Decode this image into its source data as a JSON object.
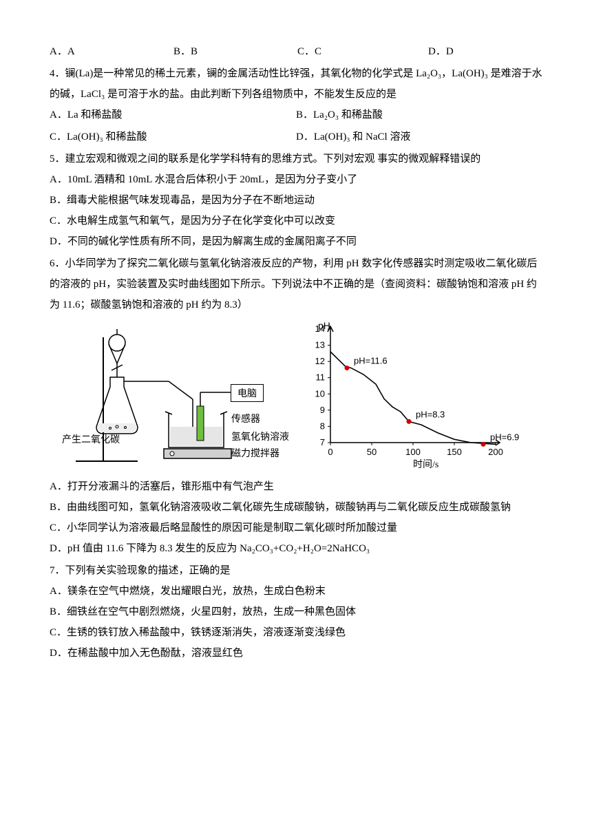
{
  "opts_top": {
    "A": "A．A",
    "B": "B．B",
    "C": "C．C",
    "D": "D．D"
  },
  "q4": {
    "stem": "4．镧(La)是一种常见的稀土元素，镧的金属活动性比锌强，其氧化物的化学式是 La₂O₃，La(OH)₃ 是难溶于水的碱，LaCl₃ 是可溶于水的盐。由此判断下列各组物质中，不能发生反应的是",
    "A": "A．La 和稀盐酸",
    "B": "B．La₂O₃ 和稀盐酸",
    "C": "C．La(OH)₃ 和稀盐酸",
    "D": "D．La(OH)₃ 和 NaCl 溶液"
  },
  "q5": {
    "stem": "5．建立宏观和微观之间的联系是化学学科特有的思维方式。下列对宏观 事实的微观解释错误的",
    "A": "A．10mL 酒精和 10mL 水混合后体积小于 20mL，是因为分子变小了",
    "B": "B．缉毒犬能根据气味发现毒品，是因为分子在不断地运动",
    "C": "C．水电解生成氢气和氧气，是因为分子在化学变化中可以改变",
    "D": "D．不同的碱化学性质有所不同，是因为解离生成的金属阳离子不同"
  },
  "q6": {
    "stem1": "6．小华同学为了探究二氧化碳与氢氧化钠溶液反应的产物，利用 pH 数字化传感器实时测定吸收二氧化碳后的溶液的 pH，实验装置及实时曲线图如下所示。下列说法中不正确的是（查阅资料：碳酸钠饱和溶液 pH 约为 11.6；碳酸氢钠饱和溶液的 pH 约为 8.3）",
    "A": "A．打开分液漏斗的活塞后，锥形瓶中有气泡产生",
    "B": "B．由曲线图可知，氢氧化钠溶液吸收二氧化碳先生成碳酸钠，碳酸钠再与二氧化碳反应生成碳酸氢钠",
    "C": "C．小华同学认为溶液最后略显酸性的原因可能是制取二氧化碳时所加酸过量",
    "D": "D．pH 值由 11.6 下降为 8.3 发生的反应为 Na₂CO₃+CO₂+H₂O=2NaHCO₃"
  },
  "q7": {
    "stem": "7．下列有关实验现象的描述，正确的是",
    "A": "A．镁条在空气中燃烧，发出耀眼白光，放热，生成白色粉末",
    "B": "B．细铁丝在空气中剧烈燃烧，火星四射，放热，生成一种黑色固体",
    "C": "C．生锈的铁钉放入稀盐酸中，铁锈逐渐消失，溶液逐渐变浅绿色",
    "D": "D．在稀盐酸中加入无色酚酞，溶液显红色"
  },
  "apparatus": {
    "co2_label": "产生二氧化碳",
    "computer": "电脑",
    "sensor": "传感器",
    "naoh": "氢氧化钠溶液",
    "stirrer": "磁力搅拌器"
  },
  "chart": {
    "y_title": "pH",
    "y_ticks": [
      14,
      13,
      12,
      11,
      10,
      9,
      8,
      7
    ],
    "x_ticks": [
      0,
      50,
      100,
      150,
      200
    ],
    "x_label": "时间/s",
    "points": [
      {
        "t": 20,
        "pH": 11.6,
        "label": "pH=11.6",
        "color": "#d00000"
      },
      {
        "t": 95,
        "pH": 8.3,
        "label": "pH=8.3",
        "color": "#d00000"
      },
      {
        "t": 185,
        "pH": 6.9,
        "label": "pH=6.9",
        "color": "#d00000"
      }
    ],
    "line_color": "#000",
    "axis_color": "#000",
    "background": "#ffffff"
  }
}
